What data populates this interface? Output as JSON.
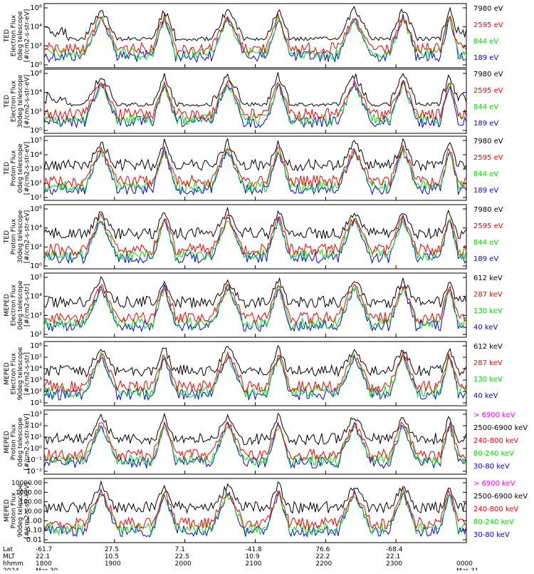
{
  "colors": {
    "blue": "#0000ff",
    "red": "#ff0000",
    "green": "#00e000",
    "black": "#000000",
    "magenta": "#ff00ff"
  },
  "panels": [
    {
      "ylabel_lines": [
        "TED",
        "Electron Flux",
        "0deg telescope",
        "[#/cm2-s-str-eV]"
      ],
      "yticks": [
        "10⁶",
        "10⁴",
        "10²",
        "10⁰"
      ],
      "legend": [
        {
          "label": "7980 eV",
          "color": "#000000"
        },
        {
          "label": "2595 eV",
          "color": "#ff0000"
        },
        {
          "label": "844 eV",
          "color": "#00e000"
        },
        {
          "label": "189 eV",
          "color": "#0000ff"
        }
      ]
    },
    {
      "ylabel_lines": [
        "TED",
        "Electron Flux",
        "30deg telescope",
        "[#/cm2-s-str-eV]"
      ],
      "yticks": [
        "10⁶",
        "10⁴",
        "10²",
        "10⁰"
      ],
      "legend": [
        {
          "label": "7980 eV",
          "color": "#000000"
        },
        {
          "label": "2595 eV",
          "color": "#ff0000"
        },
        {
          "label": "844 eV",
          "color": "#00e000"
        },
        {
          "label": "189 eV",
          "color": "#0000ff"
        }
      ]
    },
    {
      "ylabel_lines": [
        "TED",
        "Proton Flux",
        "0deg telescope",
        "[#/cm2-s-str-eV]"
      ],
      "yticks": [
        "10⁵",
        "10⁴",
        "10³",
        "10²",
        "10¹"
      ],
      "legend": [
        {
          "label": "7980 eV",
          "color": "#000000"
        },
        {
          "label": "2595 eV",
          "color": "#ff0000"
        },
        {
          "label": "844 eV",
          "color": "#00e000"
        },
        {
          "label": "189 eV",
          "color": "#0000ff"
        }
      ]
    },
    {
      "ylabel_lines": [
        "TED",
        "Proton Flux",
        "30deg telescope",
        "[#/cm2-s-str-eV]"
      ],
      "yticks": [
        "10⁶",
        "10⁴",
        "10²",
        "10⁰"
      ],
      "legend": [
        {
          "label": "7980 eV",
          "color": "#000000"
        },
        {
          "label": "2595 eV",
          "color": "#ff0000"
        },
        {
          "label": "844 eV",
          "color": "#00e000"
        },
        {
          "label": "189 eV",
          "color": "#0000ff"
        }
      ]
    },
    {
      "ylabel_lines": [
        "MEPED",
        "Electron Flux",
        "0deg telescope",
        "[#/cm2-s-str]"
      ],
      "yticks": [
        "10⁵",
        "10⁴",
        "10³",
        "10²"
      ],
      "legend": [
        {
          "label": "612 keV",
          "color": "#000000"
        },
        {
          "label": "287 keV",
          "color": "#ff0000"
        },
        {
          "label": "130 keV",
          "color": "#00e000"
        },
        {
          "label": "40 keV",
          "color": "#0000ff"
        }
      ]
    },
    {
      "ylabel_lines": [
        "MEPED",
        "Electron Flux",
        "90deg telescope",
        "[#/cm2-s-str]"
      ],
      "yticks": [
        "10⁶",
        "10⁵",
        "10⁴",
        "10³",
        "10²",
        "10¹"
      ],
      "legend": [
        {
          "label": "612 keV",
          "color": "#000000"
        },
        {
          "label": "287 keV",
          "color": "#ff0000"
        },
        {
          "label": "130 keV",
          "color": "#00e000"
        },
        {
          "label": "40 keV",
          "color": "#0000ff"
        }
      ]
    },
    {
      "ylabel_lines": [
        "MEPED",
        "Proton Flux",
        "0deg telescope",
        "[#/cm2-s-str-keV]"
      ],
      "yticks": [
        "10³",
        "10²",
        "10¹",
        "10⁰",
        "10⁻¹",
        "10⁻²"
      ],
      "legend": [
        {
          "label": "> 6900 keV",
          "color": "#ff00ff"
        },
        {
          "label": "2500-6900 keV",
          "color": "#000000"
        },
        {
          "label": "240-800 keV",
          "color": "#ff0000"
        },
        {
          "label": "80-240 keV",
          "color": "#00e000"
        },
        {
          "label": "30-80 keV",
          "color": "#0000ff"
        }
      ]
    },
    {
      "ylabel_lines": [
        "MEPED",
        "Proton Flux",
        "90deg telescope",
        "[#/cm2-s-str-keV]"
      ],
      "yticks": [
        "10000.00",
        "1000.00",
        "100.00",
        "10.00",
        "1.00",
        "0.10",
        "0.01"
      ],
      "legend": [
        {
          "label": "> 6900 keV",
          "color": "#ff00ff"
        },
        {
          "label": "2500-6900 keV",
          "color": "#000000"
        },
        {
          "label": "240-800 keV",
          "color": "#ff0000"
        },
        {
          "label": "80-240 keV",
          "color": "#00e000"
        },
        {
          "label": "30-80 keV",
          "color": "#0000ff"
        }
      ]
    }
  ],
  "xaxis": {
    "row_labels": [
      "Lat",
      "MLT",
      "hhmm",
      "2024"
    ],
    "columns": [
      [
        "-61.7",
        "22.1",
        "1800",
        "Mar 30"
      ],
      [
        "27.5",
        "10.5",
        "1900",
        ""
      ],
      [
        "7.1",
        "22.5",
        "2000",
        ""
      ],
      [
        "-41.8",
        "10.9",
        "2100",
        ""
      ],
      [
        "76.6",
        "22.2",
        "2200",
        ""
      ],
      [
        "-68.4",
        "22.1",
        "2300",
        ""
      ],
      [
        "",
        "",
        "0000",
        "Mar 31"
      ]
    ]
  },
  "chart_data": [
    {
      "type": "line",
      "title": "",
      "ylabel": "TED Electron Flux 0deg telescope [#/cm2-s-str-eV]",
      "ylim": [
        1,
        1000000
      ],
      "yscale": "log",
      "x_range": [
        "1800",
        "0000"
      ],
      "series": [
        {
          "name": "7980 eV",
          "color": "#000000"
        },
        {
          "name": "2595 eV",
          "color": "#ff0000"
        },
        {
          "name": "844 eV",
          "color": "#00e000"
        },
        {
          "name": "189 eV",
          "color": "#0000ff"
        }
      ]
    },
    {
      "type": "line",
      "title": "",
      "ylabel": "TED Electron Flux 30deg telescope [#/cm2-s-str-eV]",
      "ylim": [
        1,
        1000000
      ],
      "yscale": "log",
      "x_range": [
        "1800",
        "0000"
      ],
      "series": [
        {
          "name": "7980 eV",
          "color": "#000000"
        },
        {
          "name": "2595 eV",
          "color": "#ff0000"
        },
        {
          "name": "844 eV",
          "color": "#00e000"
        },
        {
          "name": "189 eV",
          "color": "#0000ff"
        }
      ]
    },
    {
      "type": "line",
      "title": "",
      "ylabel": "TED Proton Flux 0deg telescope [#/cm2-s-str-eV]",
      "ylim": [
        10,
        100000
      ],
      "yscale": "log",
      "x_range": [
        "1800",
        "0000"
      ],
      "series": [
        {
          "name": "7980 eV",
          "color": "#000000"
        },
        {
          "name": "2595 eV",
          "color": "#ff0000"
        },
        {
          "name": "844 eV",
          "color": "#00e000"
        },
        {
          "name": "189 eV",
          "color": "#0000ff"
        }
      ]
    },
    {
      "type": "line",
      "title": "",
      "ylabel": "TED Proton Flux 30deg telescope [#/cm2-s-str-eV]",
      "ylim": [
        1,
        1000000
      ],
      "yscale": "log",
      "x_range": [
        "1800",
        "0000"
      ],
      "series": [
        {
          "name": "7980 eV",
          "color": "#000000"
        },
        {
          "name": "2595 eV",
          "color": "#ff0000"
        },
        {
          "name": "844 eV",
          "color": "#00e000"
        },
        {
          "name": "189 eV",
          "color": "#0000ff"
        }
      ]
    },
    {
      "type": "line",
      "title": "",
      "ylabel": "MEPED Electron Flux 0deg telescope [#/cm2-s-str]",
      "ylim": [
        100,
        100000
      ],
      "yscale": "log",
      "x_range": [
        "1800",
        "0000"
      ],
      "series": [
        {
          "name": "612 keV",
          "color": "#000000"
        },
        {
          "name": "287 keV",
          "color": "#ff0000"
        },
        {
          "name": "130 keV",
          "color": "#00e000"
        },
        {
          "name": "40 keV",
          "color": "#0000ff"
        }
      ]
    },
    {
      "type": "line",
      "title": "",
      "ylabel": "MEPED Electron Flux 90deg telescope [#/cm2-s-str]",
      "ylim": [
        10,
        1000000
      ],
      "yscale": "log",
      "x_range": [
        "1800",
        "0000"
      ],
      "series": [
        {
          "name": "612 keV",
          "color": "#000000"
        },
        {
          "name": "287 keV",
          "color": "#ff0000"
        },
        {
          "name": "130 keV",
          "color": "#00e000"
        },
        {
          "name": "40 keV",
          "color": "#0000ff"
        }
      ]
    },
    {
      "type": "line",
      "title": "",
      "ylabel": "MEPED Proton Flux 0deg telescope [#/cm2-s-str-keV]",
      "ylim": [
        0.01,
        1000
      ],
      "yscale": "log",
      "x_range": [
        "1800",
        "0000"
      ],
      "series": [
        {
          "name": "> 6900 keV",
          "color": "#ff00ff"
        },
        {
          "name": "2500-6900 keV",
          "color": "#000000"
        },
        {
          "name": "240-800 keV",
          "color": "#ff0000"
        },
        {
          "name": "80-240 keV",
          "color": "#00e000"
        },
        {
          "name": "30-80 keV",
          "color": "#0000ff"
        }
      ]
    },
    {
      "type": "line",
      "title": "",
      "ylabel": "MEPED Proton Flux 90deg telescope [#/cm2-s-str-keV]",
      "ylim": [
        0.01,
        10000
      ],
      "yscale": "log",
      "x_range": [
        "1800",
        "0000"
      ],
      "series": [
        {
          "name": "> 6900 keV",
          "color": "#ff00ff"
        },
        {
          "name": "2500-6900 keV",
          "color": "#000000"
        },
        {
          "name": "240-800 keV",
          "color": "#ff0000"
        },
        {
          "name": "80-240 keV",
          "color": "#00e000"
        },
        {
          "name": "30-80 keV",
          "color": "#0000ff"
        }
      ]
    }
  ]
}
